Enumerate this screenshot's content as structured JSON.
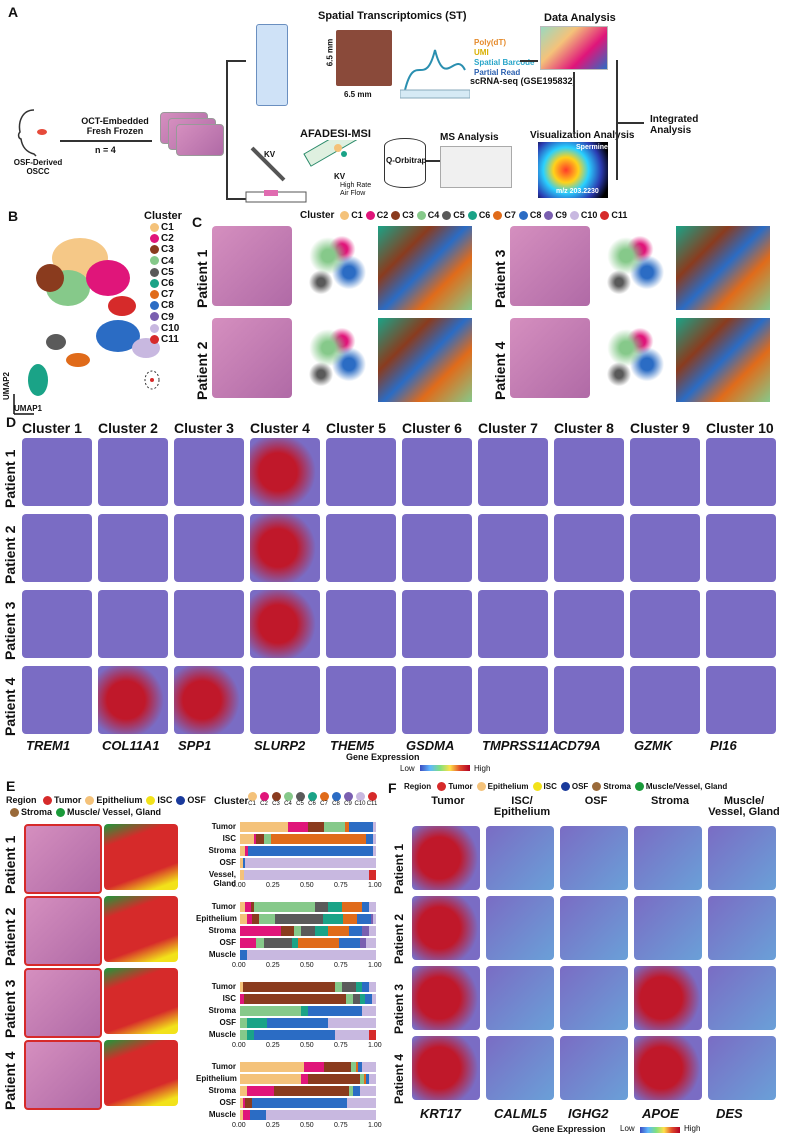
{
  "panels": {
    "A": "A",
    "B": "B",
    "C": "C",
    "D": "D",
    "E": "E",
    "F": "F"
  },
  "panel_a": {
    "patient_label": "OSF-Derived OSCC",
    "oct_label": "OCT-Embedded Fresh Frozen",
    "n_label": "n = 4",
    "st_title": "Spatial Transcriptomics (ST)",
    "dim1": "6.5 mm",
    "dim2": "6.5 mm",
    "probe_labels": [
      "Poly(dT)",
      "UMI",
      "Spatial Barcode",
      "Partial Read"
    ],
    "probe_colors": [
      "#e58a2a",
      "#d9b000",
      "#2aa6c9",
      "#2a5fb0"
    ],
    "data_analysis": "Data Analysis",
    "scrna": "scRNA-seq (GSE195832)",
    "afadesi": "AFADESI-MSI",
    "q_orbitrap": "Q-Orbitrap",
    "kv1": "KV",
    "kv2": "KV",
    "airflow": "High Rate Air Flow",
    "ms_analysis": "MS Analysis",
    "viz_analysis": "Visualization Analysis",
    "spermine": "Spermine",
    "mz": "m/z 203.2230",
    "integrated": "Integrated Analysis"
  },
  "panel_b": {
    "title": "Cluster",
    "clusters": [
      {
        "name": "C1",
        "color": "#f4c27a"
      },
      {
        "name": "C2",
        "color": "#e0157a"
      },
      {
        "name": "C3",
        "color": "#8a3b1e"
      },
      {
        "name": "C4",
        "color": "#86c98a"
      },
      {
        "name": "C5",
        "color": "#5a5a5a"
      },
      {
        "name": "C6",
        "color": "#1aa387"
      },
      {
        "name": "C7",
        "color": "#e06b1a"
      },
      {
        "name": "C8",
        "color": "#2b6cc4"
      },
      {
        "name": "C9",
        "color": "#7a5fb0"
      },
      {
        "name": "C10",
        "color": "#c8b8e0"
      },
      {
        "name": "C11",
        "color": "#d62a2a"
      }
    ],
    "umap1": "UMAP1",
    "umap2": "UMAP2"
  },
  "panel_c": {
    "legend_title": "Cluster",
    "patients": [
      "Patient 1",
      "Patient 2",
      "Patient 3",
      "Patient 4"
    ]
  },
  "panel_d": {
    "clusters": [
      "Cluster 1",
      "Cluster 2",
      "Cluster 3",
      "Cluster 4",
      "Cluster 5",
      "Cluster 6",
      "Cluster 7",
      "Cluster 8",
      "Cluster 9",
      "Cluster 10"
    ],
    "patients": [
      "Patient 1",
      "Patient 2",
      "Patient 3",
      "Patient 4"
    ],
    "genes": [
      "TREM1",
      "COL11A1",
      "SPP1",
      "SLURP2",
      "THEM5",
      "GSDMA",
      "TMPRSS11A",
      "CD79A",
      "GZMK",
      "PI16"
    ],
    "gene_expr": "Gene Expression",
    "low": "Low",
    "high": "High"
  },
  "panel_e": {
    "region_title": "Region",
    "regions": [
      {
        "name": "Tumor",
        "color": "#d62a2a"
      },
      {
        "name": "Epithelium",
        "color": "#f4c27a"
      },
      {
        "name": "ISC",
        "color": "#f2e21a"
      },
      {
        "name": "OSF",
        "color": "#1a3a9c"
      },
      {
        "name": "Stroma",
        "color": "#9a6a3a"
      },
      {
        "name": "Muscle/ Vessel, Gland",
        "color": "#1a9a3a"
      }
    ],
    "patients": [
      "Patient 1",
      "Patient 2",
      "Patient 3",
      "Patient 4"
    ],
    "cluster_title": "Cluster",
    "ticks": [
      "0.00",
      "0.25",
      "0.50",
      "0.75",
      "1.00"
    ]
  },
  "chart_data": [
    {
      "type": "bar",
      "title": "Patient 1",
      "categories": [
        "Tumor",
        "ISC",
        "Stroma",
        "OSF",
        "Vessel, Gland"
      ],
      "series": [
        {
          "name": "C1",
          "values": [
            0.35,
            0.1,
            0.04,
            0.02,
            0.03
          ]
        },
        {
          "name": "C2",
          "values": [
            0.15,
            0.02,
            0.02,
            0.0,
            0.0
          ]
        },
        {
          "name": "C3",
          "values": [
            0.12,
            0.06,
            0.0,
            0.0,
            0.0
          ]
        },
        {
          "name": "C4",
          "values": [
            0.15,
            0.05,
            0.0,
            0.0,
            0.0
          ]
        },
        {
          "name": "C5",
          "values": [
            0.0,
            0.0,
            0.0,
            0.0,
            0.0
          ]
        },
        {
          "name": "C6",
          "values": [
            0.0,
            0.0,
            0.0,
            0.0,
            0.0
          ]
        },
        {
          "name": "C7",
          "values": [
            0.03,
            0.7,
            0.0,
            0.0,
            0.0
          ]
        },
        {
          "name": "C8",
          "values": [
            0.18,
            0.05,
            0.92,
            0.02,
            0.0
          ]
        },
        {
          "name": "C9",
          "values": [
            0.0,
            0.0,
            0.0,
            0.0,
            0.0
          ]
        },
        {
          "name": "C10",
          "values": [
            0.02,
            0.02,
            0.02,
            0.96,
            0.92
          ]
        },
        {
          "name": "C11",
          "values": [
            0.0,
            0.0,
            0.0,
            0.0,
            0.05
          ]
        }
      ]
    },
    {
      "type": "bar",
      "title": "Patient 2",
      "categories": [
        "Tumor",
        "Epithelium",
        "Stroma",
        "OSF",
        "Muscle"
      ],
      "series": [
        {
          "name": "C1",
          "values": [
            0.04,
            0.05,
            0.0,
            0.0,
            0.0
          ]
        },
        {
          "name": "C2",
          "values": [
            0.04,
            0.04,
            0.3,
            0.12,
            0.0
          ]
        },
        {
          "name": "C3",
          "values": [
            0.02,
            0.05,
            0.1,
            0.0,
            0.0
          ]
        },
        {
          "name": "C4",
          "values": [
            0.45,
            0.12,
            0.05,
            0.06,
            0.0
          ]
        },
        {
          "name": "C5",
          "values": [
            0.1,
            0.35,
            0.1,
            0.2,
            0.0
          ]
        },
        {
          "name": "C6",
          "values": [
            0.1,
            0.15,
            0.1,
            0.05,
            0.0
          ]
        },
        {
          "name": "C7",
          "values": [
            0.15,
            0.1,
            0.15,
            0.3,
            0.0
          ]
        },
        {
          "name": "C8",
          "values": [
            0.05,
            0.1,
            0.1,
            0.15,
            0.05
          ]
        },
        {
          "name": "C9",
          "values": [
            0.0,
            0.02,
            0.05,
            0.05,
            0.0
          ]
        },
        {
          "name": "C10",
          "values": [
            0.05,
            0.02,
            0.05,
            0.07,
            0.95
          ]
        },
        {
          "name": "C11",
          "values": [
            0.0,
            0.0,
            0.0,
            0.0,
            0.0
          ]
        }
      ]
    },
    {
      "type": "bar",
      "title": "Patient 3",
      "categories": [
        "Tumor",
        "ISC",
        "Stroma",
        "OSF",
        "Muscle"
      ],
      "series": [
        {
          "name": "C1",
          "values": [
            0.02,
            0.0,
            0.0,
            0.0,
            0.0
          ]
        },
        {
          "name": "C2",
          "values": [
            0.0,
            0.03,
            0.0,
            0.0,
            0.0
          ]
        },
        {
          "name": "C3",
          "values": [
            0.68,
            0.75,
            0.0,
            0.0,
            0.0
          ]
        },
        {
          "name": "C4",
          "values": [
            0.05,
            0.05,
            0.45,
            0.05,
            0.05
          ]
        },
        {
          "name": "C5",
          "values": [
            0.1,
            0.05,
            0.0,
            0.0,
            0.0
          ]
        },
        {
          "name": "C6",
          "values": [
            0.05,
            0.04,
            0.05,
            0.15,
            0.05
          ]
        },
        {
          "name": "C7",
          "values": [
            0.0,
            0.0,
            0.0,
            0.0,
            0.0
          ]
        },
        {
          "name": "C8",
          "values": [
            0.05,
            0.05,
            0.4,
            0.45,
            0.6
          ]
        },
        {
          "name": "C9",
          "values": [
            0.0,
            0.0,
            0.0,
            0.0,
            0.0
          ]
        },
        {
          "name": "C10",
          "values": [
            0.05,
            0.03,
            0.1,
            0.35,
            0.25
          ]
        },
        {
          "name": "C11",
          "values": [
            0.0,
            0.0,
            0.0,
            0.0,
            0.05
          ]
        }
      ]
    },
    {
      "type": "bar",
      "title": "Patient 4",
      "categories": [
        "Tumor",
        "Epithelium",
        "Stroma",
        "OSF",
        "Muscle"
      ],
      "series": [
        {
          "name": "C1",
          "values": [
            0.47,
            0.45,
            0.05,
            0.02,
            0.02
          ]
        },
        {
          "name": "C2",
          "values": [
            0.15,
            0.05,
            0.2,
            0.02,
            0.05
          ]
        },
        {
          "name": "C3",
          "values": [
            0.2,
            0.38,
            0.55,
            0.05,
            0.0
          ]
        },
        {
          "name": "C4",
          "values": [
            0.03,
            0.03,
            0.03,
            0.0,
            0.0
          ]
        },
        {
          "name": "C5",
          "values": [
            0.0,
            0.0,
            0.0,
            0.0,
            0.0
          ]
        },
        {
          "name": "C6",
          "values": [
            0.0,
            0.0,
            0.0,
            0.0,
            0.0
          ]
        },
        {
          "name": "C7",
          "values": [
            0.02,
            0.02,
            0.0,
            0.0,
            0.0
          ]
        },
        {
          "name": "C8",
          "values": [
            0.03,
            0.02,
            0.05,
            0.7,
            0.12
          ]
        },
        {
          "name": "C9",
          "values": [
            0.0,
            0.0,
            0.0,
            0.0,
            0.0
          ]
        },
        {
          "name": "C10",
          "values": [
            0.1,
            0.05,
            0.12,
            0.21,
            0.81
          ]
        },
        {
          "name": "C11",
          "values": [
            0.0,
            0.0,
            0.0,
            0.0,
            0.0
          ]
        }
      ]
    }
  ],
  "panel_f": {
    "region_title": "Region",
    "regions": [
      "Tumor",
      "Epithelium",
      "ISC",
      "OSF",
      "Stroma",
      "Muscle/Vessel, Gland"
    ],
    "columns": [
      "Tumor",
      "ISC/ Epithelium",
      "OSF",
      "Stroma",
      "Muscle/ Vessel, Gland"
    ],
    "patients": [
      "Patient 1",
      "Patient 2",
      "Patient 3",
      "Patient 4"
    ],
    "genes": [
      "KRT17",
      "CALML5",
      "IGHG2",
      "APOE",
      "DES"
    ],
    "gene_expr": "Gene Expression",
    "low": "Low",
    "high": "High"
  }
}
